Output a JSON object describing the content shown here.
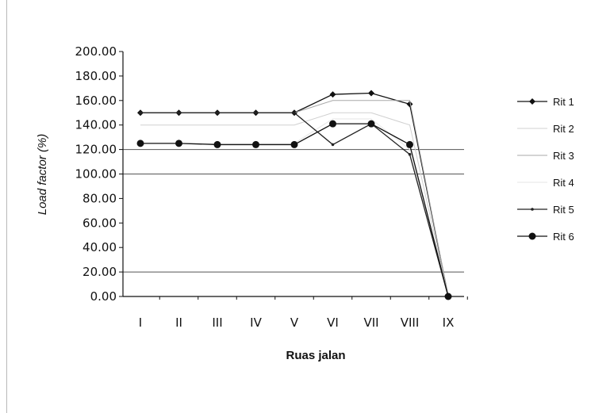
{
  "chart_data": {
    "type": "line",
    "title": "",
    "xlabel": "Ruas jalan",
    "ylabel": "Load factor (%)",
    "categories": [
      "I",
      "II",
      "III",
      "IV",
      "V",
      "VI",
      "VII",
      "VIII",
      "IX"
    ],
    "ylim": [
      0,
      200
    ],
    "yticks": [
      "0.00",
      "20.00",
      "40.00",
      "60.00",
      "80.00",
      "100.00",
      "120.00",
      "140.00",
      "160.00",
      "180.00",
      "200.00"
    ],
    "grid_values": [
      20,
      100,
      120
    ],
    "legend_position": "right",
    "series": [
      {
        "name": "Rit 1",
        "values": [
          150,
          150,
          150,
          150,
          150,
          165,
          166,
          157,
          0
        ],
        "color": "#111111",
        "marker": "diamond"
      },
      {
        "name": "Rit 2",
        "values": [
          140,
          140,
          140,
          140,
          140,
          150,
          150,
          140,
          0
        ],
        "color": "#d0d0d0",
        "marker": "none"
      },
      {
        "name": "Rit 3",
        "values": [
          150,
          150,
          150,
          150,
          150,
          160,
          160,
          160,
          0
        ],
        "color": "#a8a8a8",
        "marker": "none"
      },
      {
        "name": "Rit 4",
        "values": [
          125,
          125,
          125,
          125,
          125,
          145,
          145,
          120,
          0
        ],
        "color": "#e6e6e6",
        "marker": "none"
      },
      {
        "name": "Rit 5",
        "values": [
          150,
          150,
          150,
          150,
          150,
          124,
          141,
          116,
          0
        ],
        "color": "#222222",
        "marker": "dot"
      },
      {
        "name": "Rit 6",
        "values": [
          125,
          125,
          124,
          124,
          124,
          141,
          141,
          124,
          0
        ],
        "color": "#111111",
        "marker": "circle"
      }
    ]
  }
}
